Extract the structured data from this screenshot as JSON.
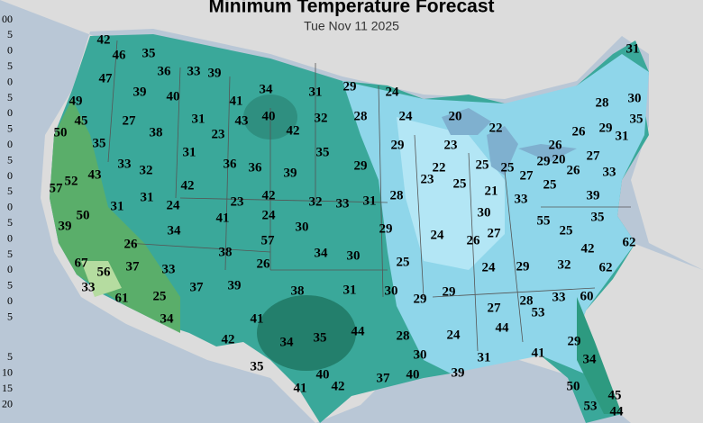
{
  "map": {
    "title": "Minimum Temperature Forecast",
    "subtitle": "Tue Nov 11 2025",
    "legend_top": [
      "00",
      "5",
      "0",
      "5",
      "0",
      "5",
      "0",
      "5",
      "0",
      "5",
      "0",
      "5",
      "0",
      "5",
      "0",
      "5",
      "0",
      "5",
      "0",
      "5"
    ],
    "legend_bottom": [
      "5",
      "10",
      "15",
      "20"
    ],
    "labels": [
      42,
      46,
      35,
      36,
      33,
      39,
      47,
      39,
      40,
      41,
      34,
      31,
      29,
      24,
      49,
      45,
      27,
      31,
      43,
      40,
      32,
      28,
      24,
      20,
      28,
      30,
      31,
      50,
      38,
      23,
      42,
      22,
      29,
      35,
      26,
      31,
      35,
      29,
      23,
      26,
      20,
      27,
      31,
      36,
      36,
      35,
      29,
      22,
      25,
      25,
      27,
      29,
      26,
      33,
      33,
      32,
      39,
      42,
      23,
      25,
      21,
      25,
      57,
      52,
      43,
      31,
      23,
      42,
      32,
      33,
      31,
      28,
      33,
      39,
      31,
      24,
      30,
      35,
      41,
      24,
      55,
      50,
      39,
      30,
      29,
      24,
      26,
      27,
      25,
      34,
      57,
      26,
      38,
      34,
      30,
      42,
      62,
      67,
      56,
      37,
      26,
      25,
      24,
      29,
      32,
      62,
      33,
      33,
      37,
      39,
      38,
      31,
      30,
      29,
      29,
      28,
      33,
      60,
      61,
      25,
      27,
      53,
      34,
      41,
      44,
      35,
      28,
      24,
      44,
      42,
      34,
      29,
      30,
      31,
      41,
      34,
      35,
      40,
      37,
      40,
      39,
      42,
      41,
      50,
      45,
      53,
      44
    ]
  }
}
